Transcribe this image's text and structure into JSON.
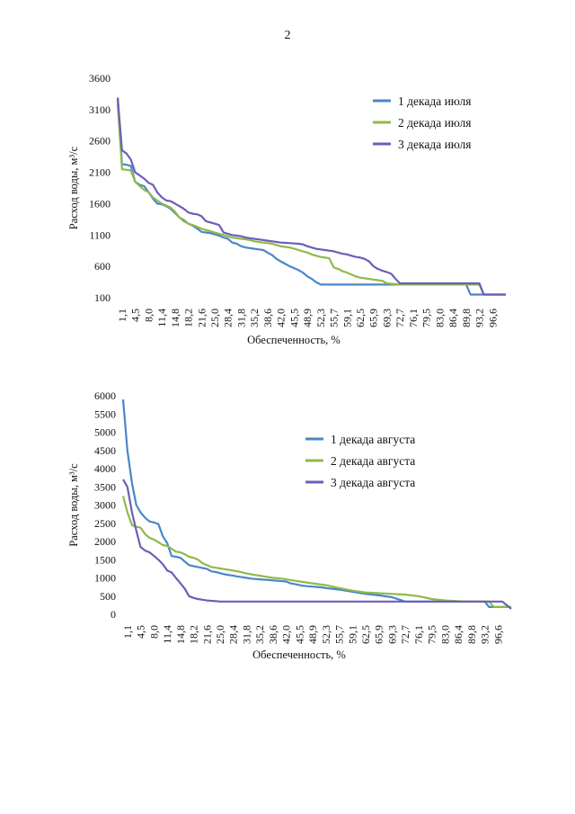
{
  "page": {
    "number": "2"
  },
  "chart_data": [
    {
      "type": "line",
      "ylabel": "Расход воды, м³/с",
      "xlabel": "Обеспеченность, %",
      "ylim": [
        100,
        3600
      ],
      "yticks": [
        100,
        600,
        1100,
        1600,
        2100,
        2600,
        3100,
        3600
      ],
      "xlim": [
        0,
        100
      ],
      "xticks": [
        "1,1",
        "4,5",
        "8,0",
        "11,4",
        "14,8",
        "18,2",
        "21,6",
        "25,0",
        "28,4",
        "31,8",
        "35,2",
        "38,6",
        "42,0",
        "45,5",
        "48,9",
        "52,3",
        "55,7",
        "59,1",
        "62,5",
        "65,9",
        "69,3",
        "72,7",
        "76,1",
        "79,5",
        "83,0",
        "86,4",
        "89,8",
        "93,2",
        "96,6"
      ],
      "legend_position": "top-right",
      "series": [
        {
          "name": "1 декада июля",
          "color": "#4a86c8",
          "x": [
            0,
            1.1,
            2.3,
            3.4,
            4.5,
            5.7,
            6.8,
            8.0,
            9.1,
            10.2,
            11.4,
            12.5,
            13.6,
            14.8,
            15.9,
            17.0,
            18.2,
            19.3,
            20.5,
            21.6,
            22.7,
            23.9,
            25.0,
            26.1,
            27.3,
            28.4,
            29.5,
            30.7,
            31.8,
            33.0,
            34.1,
            35.2,
            36.4,
            37.5,
            38.6,
            39.8,
            40.9,
            42.0,
            43.2,
            44.3,
            45.5,
            46.6,
            47.7,
            48.9,
            50.0,
            51.1,
            52.3,
            55.7,
            59.1,
            62.5,
            65.9,
            69.3,
            72.7,
            76.1,
            79.5,
            83.0,
            86.4,
            89.8,
            90.9,
            93.2,
            94.3,
            96.6,
            100
          ],
          "y": [
            3290,
            2230,
            2220,
            2200,
            1950,
            1900,
            1880,
            1780,
            1680,
            1600,
            1590,
            1560,
            1520,
            1450,
            1380,
            1340,
            1280,
            1250,
            1200,
            1150,
            1140,
            1130,
            1110,
            1090,
            1060,
            1040,
            980,
            960,
            920,
            900,
            890,
            880,
            870,
            860,
            820,
            780,
            720,
            680,
            640,
            600,
            570,
            540,
            500,
            440,
            400,
            350,
            310,
            310,
            310,
            310,
            310,
            310,
            310,
            310,
            310,
            310,
            310,
            310,
            150,
            150,
            150,
            150,
            150
          ]
        },
        {
          "name": "2 декада июля",
          "color": "#8fba4a",
          "x": [
            0,
            1.1,
            2.3,
            3.4,
            4.5,
            5.7,
            6.8,
            8.0,
            9.1,
            10.2,
            11.4,
            12.5,
            13.6,
            14.8,
            15.9,
            17.0,
            18.2,
            19.3,
            20.5,
            21.6,
            22.7,
            23.9,
            25.0,
            26.1,
            27.3,
            28.4,
            29.5,
            30.7,
            31.8,
            33.0,
            34.1,
            35.2,
            36.4,
            37.5,
            38.6,
            39.8,
            40.9,
            42.0,
            43.2,
            44.3,
            45.5,
            46.6,
            47.7,
            48.9,
            50.0,
            51.1,
            52.3,
            53.4,
            54.5,
            55.7,
            56.8,
            58.0,
            59.1,
            60.2,
            61.4,
            62.5,
            63.6,
            64.8,
            65.9,
            67.0,
            68.2,
            69.3,
            72.7,
            76.1,
            79.5,
            83.0,
            86.4,
            89.8,
            93.2,
            94.3,
            96.6,
            100
          ],
          "y": [
            3200,
            2150,
            2140,
            2130,
            1950,
            1880,
            1820,
            1780,
            1700,
            1650,
            1600,
            1570,
            1540,
            1470,
            1380,
            1320,
            1280,
            1260,
            1230,
            1200,
            1180,
            1160,
            1140,
            1120,
            1100,
            1080,
            1060,
            1050,
            1040,
            1030,
            1020,
            1000,
            990,
            980,
            970,
            960,
            940,
            920,
            910,
            900,
            880,
            860,
            840,
            820,
            790,
            770,
            750,
            740,
            730,
            580,
            560,
            520,
            500,
            470,
            440,
            420,
            410,
            400,
            390,
            380,
            370,
            330,
            310,
            310,
            310,
            310,
            310,
            310,
            310,
            150,
            150,
            150
          ]
        },
        {
          "name": "3 декада июля",
          "color": "#6a5fb8",
          "x": [
            0,
            1.1,
            2.3,
            3.4,
            4.5,
            5.7,
            6.8,
            8.0,
            9.1,
            10.2,
            11.4,
            12.5,
            13.6,
            14.8,
            15.9,
            17.0,
            18.2,
            19.3,
            20.5,
            21.6,
            22.7,
            23.9,
            25.0,
            26.1,
            27.3,
            28.4,
            29.5,
            30.7,
            31.8,
            33.0,
            34.1,
            35.2,
            36.4,
            37.5,
            38.6,
            39.8,
            40.9,
            42.0,
            43.2,
            44.3,
            45.5,
            46.6,
            47.7,
            48.9,
            50.0,
            51.1,
            52.3,
            53.4,
            54.5,
            55.7,
            56.8,
            58.0,
            59.1,
            60.2,
            61.4,
            62.5,
            63.6,
            64.8,
            65.9,
            67.0,
            68.2,
            69.3,
            70.5,
            71.6,
            72.7,
            76.1,
            79.5,
            83.0,
            86.4,
            89.8,
            93.2,
            94.3,
            96.6,
            100
          ],
          "y": [
            3290,
            2450,
            2400,
            2300,
            2100,
            2050,
            2000,
            1930,
            1900,
            1780,
            1700,
            1650,
            1640,
            1600,
            1560,
            1520,
            1460,
            1440,
            1430,
            1400,
            1320,
            1300,
            1280,
            1260,
            1140,
            1120,
            1100,
            1090,
            1080,
            1060,
            1050,
            1040,
            1030,
            1020,
            1010,
            1000,
            990,
            980,
            975,
            970,
            965,
            960,
            950,
            920,
            900,
            880,
            870,
            860,
            850,
            840,
            820,
            800,
            790,
            770,
            750,
            740,
            720,
            680,
            600,
            560,
            530,
            510,
            480,
            400,
            330,
            330,
            330,
            330,
            330,
            330,
            330,
            150,
            150,
            150
          ]
        }
      ]
    },
    {
      "type": "line",
      "ylabel": "Расход воды, м³/с",
      "xlabel": "Обеспеченность, %",
      "ylim": [
        0,
        6000
      ],
      "yticks": [
        0,
        500,
        1000,
        1500,
        2000,
        2500,
        3000,
        3500,
        4000,
        4500,
        5000,
        5500,
        6000
      ],
      "xlim": [
        0,
        100
      ],
      "xticks": [
        "1,1",
        "4,5",
        "8,0",
        "11,4",
        "14,8",
        "18,2",
        "21,6",
        "25,0",
        "28,4",
        "31,8",
        "35,2",
        "38,6",
        "42,0",
        "45,5",
        "48,9",
        "52,3",
        "55,7",
        "59,1",
        "62,5",
        "65,9",
        "69,3",
        "72,7",
        "76,1",
        "79,5",
        "83,0",
        "86,4",
        "89,8",
        "93,2",
        "96,6"
      ],
      "legend_position": "top-right",
      "series": [
        {
          "name": "1 декада августа",
          "color": "#4a86c8",
          "x": [
            0,
            1.1,
            2.3,
            3.4,
            4.5,
            5.7,
            6.8,
            8.0,
            9.1,
            10.2,
            11.4,
            12.5,
            13.6,
            14.8,
            15.9,
            17.0,
            18.2,
            19.3,
            20.5,
            21.6,
            22.7,
            23.9,
            25.0,
            26.1,
            27.3,
            28.4,
            29.5,
            30.7,
            31.8,
            33.0,
            34.1,
            35.2,
            36.4,
            37.5,
            38.6,
            39.8,
            40.9,
            42.0,
            43.2,
            44.3,
            45.5,
            46.6,
            47.7,
            48.9,
            50.0,
            51.1,
            52.3,
            55.7,
            59.1,
            62.5,
            65.9,
            69.3,
            72.7,
            76.1,
            79.5,
            83.0,
            86.4,
            89.8,
            90.9,
            93.2,
            94.3,
            95.5,
            96.6,
            100
          ],
          "y": [
            5900,
            4500,
            3600,
            3000,
            2800,
            2650,
            2550,
            2520,
            2480,
            2150,
            1950,
            1600,
            1580,
            1550,
            1450,
            1350,
            1320,
            1300,
            1270,
            1250,
            1180,
            1160,
            1130,
            1100,
            1080,
            1060,
            1040,
            1020,
            1000,
            980,
            970,
            960,
            950,
            940,
            930,
            920,
            910,
            900,
            850,
            830,
            800,
            780,
            770,
            760,
            750,
            740,
            720,
            680,
            620,
            560,
            520,
            470,
            350,
            350,
            350,
            350,
            350,
            350,
            350,
            350,
            200,
            200,
            200,
            200
          ]
        },
        {
          "name": "2 декада августа",
          "color": "#8fba4a",
          "x": [
            0,
            1.1,
            2.3,
            3.4,
            4.5,
            5.7,
            6.8,
            8.0,
            9.1,
            10.2,
            11.4,
            12.5,
            13.6,
            14.8,
            15.9,
            17.0,
            18.2,
            19.3,
            20.5,
            21.6,
            22.7,
            23.9,
            25.0,
            26.1,
            27.3,
            28.4,
            29.5,
            30.7,
            31.8,
            33.0,
            34.1,
            35.2,
            36.4,
            37.5,
            38.6,
            39.8,
            40.9,
            42.0,
            43.2,
            44.3,
            45.5,
            48.9,
            52.3,
            55.7,
            59.1,
            62.5,
            65.9,
            69.3,
            72.7,
            76.1,
            79.5,
            83.0,
            86.4,
            89.8,
            93.2,
            94.3,
            95.5,
            96.6,
            100
          ],
          "y": [
            3250,
            2800,
            2450,
            2400,
            2380,
            2200,
            2100,
            2050,
            1980,
            1900,
            1880,
            1800,
            1720,
            1700,
            1650,
            1580,
            1550,
            1500,
            1400,
            1350,
            1300,
            1280,
            1260,
            1240,
            1220,
            1200,
            1180,
            1150,
            1120,
            1100,
            1080,
            1060,
            1040,
            1020,
            1000,
            990,
            980,
            960,
            940,
            920,
            900,
            850,
            800,
            720,
            650,
            600,
            580,
            560,
            540,
            500,
            420,
            380,
            360,
            350,
            350,
            350,
            200,
            200,
            200
          ]
        },
        {
          "name": "3 декада августа",
          "color": "#6a5fb8",
          "x": [
            0,
            1.1,
            2.3,
            3.4,
            4.5,
            5.7,
            6.8,
            8.0,
            9.1,
            10.2,
            11.4,
            12.5,
            13.6,
            14.8,
            15.9,
            17.0,
            18.2,
            19.3,
            20.5,
            21.6,
            22.7,
            23.9,
            25.0,
            28.4,
            31.8,
            35.2,
            38.6,
            42.0,
            45.5,
            48.9,
            52.3,
            55.7,
            59.1,
            62.5,
            65.9,
            69.3,
            72.7,
            76.1,
            79.5,
            83.0,
            86.4,
            89.8,
            93.2,
            94.3,
            95.5,
            96.6,
            97.7,
            100
          ],
          "y": [
            3700,
            3500,
            2800,
            2300,
            1850,
            1750,
            1700,
            1600,
            1500,
            1380,
            1200,
            1150,
            1000,
            850,
            700,
            500,
            450,
            420,
            400,
            380,
            370,
            360,
            350,
            350,
            350,
            350,
            350,
            350,
            350,
            350,
            350,
            350,
            350,
            350,
            350,
            350,
            350,
            350,
            350,
            350,
            350,
            350,
            350,
            350,
            350,
            350,
            350,
            150
          ]
        }
      ]
    }
  ]
}
